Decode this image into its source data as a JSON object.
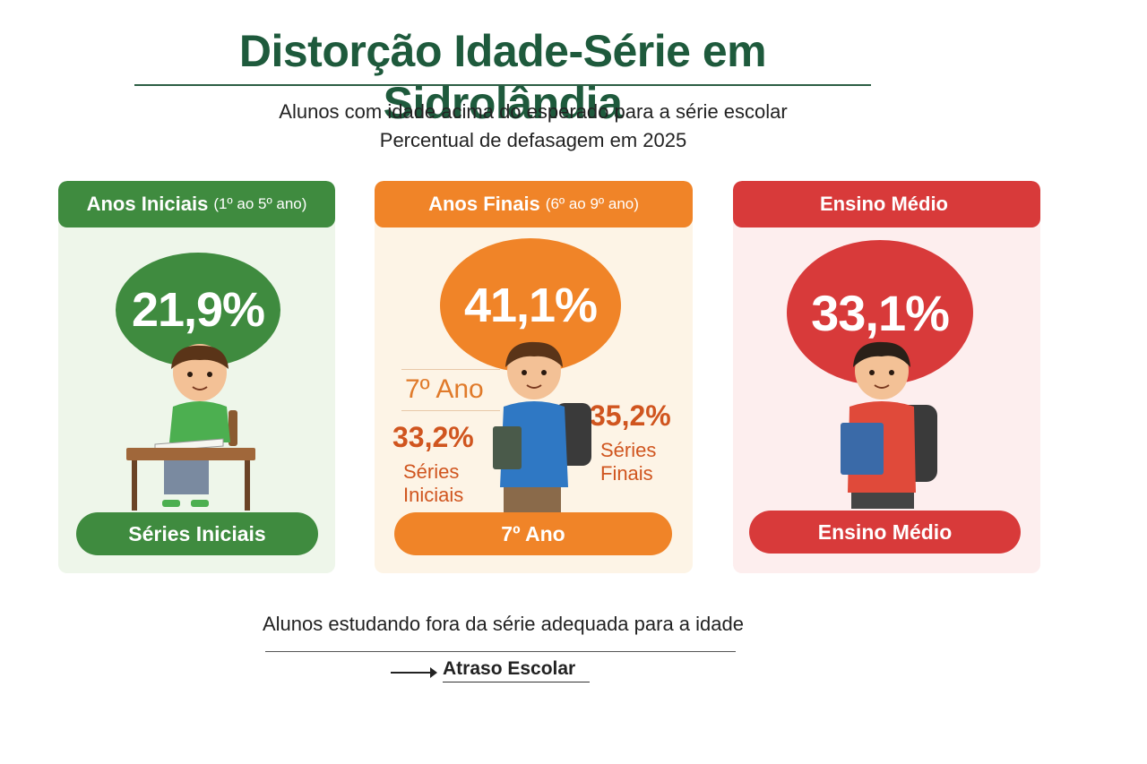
{
  "title": "Distorção Idade-Série em Sidrolândia",
  "subtitle_line1": "Alunos com idade acima do esperado para a série escolar",
  "subtitle_line2": "Percentual de defasagem em 2025",
  "cards": [
    {
      "header_main": "Anos Iniciais",
      "header_detail": "(1º ao 5º ano)",
      "value": "21,9%",
      "footer": "Séries Iniciais",
      "color": "#3f8b3f",
      "icon": "student-at-desk-icon"
    },
    {
      "header_main": "Anos Finais",
      "header_detail": "(6º ao 9º ano)",
      "value": "41,1%",
      "footer": "7º Ano",
      "color": "#f08428",
      "icon": "student-with-backpack-icon",
      "left_year": "7º Ano",
      "left_value": "33,2%",
      "left_label_line1": "Séries",
      "left_label_line2": "Iniciais",
      "right_value": "35,2%",
      "right_label_line1": "Séries",
      "right_label_line2": "Finais"
    },
    {
      "header_main": "Ensino Médio",
      "header_detail": "",
      "value": "33,1%",
      "footer": "Ensino Médio",
      "color": "#d83a3a",
      "icon": "teen-with-book-icon"
    }
  ],
  "footer_text": "Alunos estudando fora da série adequada para a idade",
  "footer_link": "Atraso Escolar"
}
